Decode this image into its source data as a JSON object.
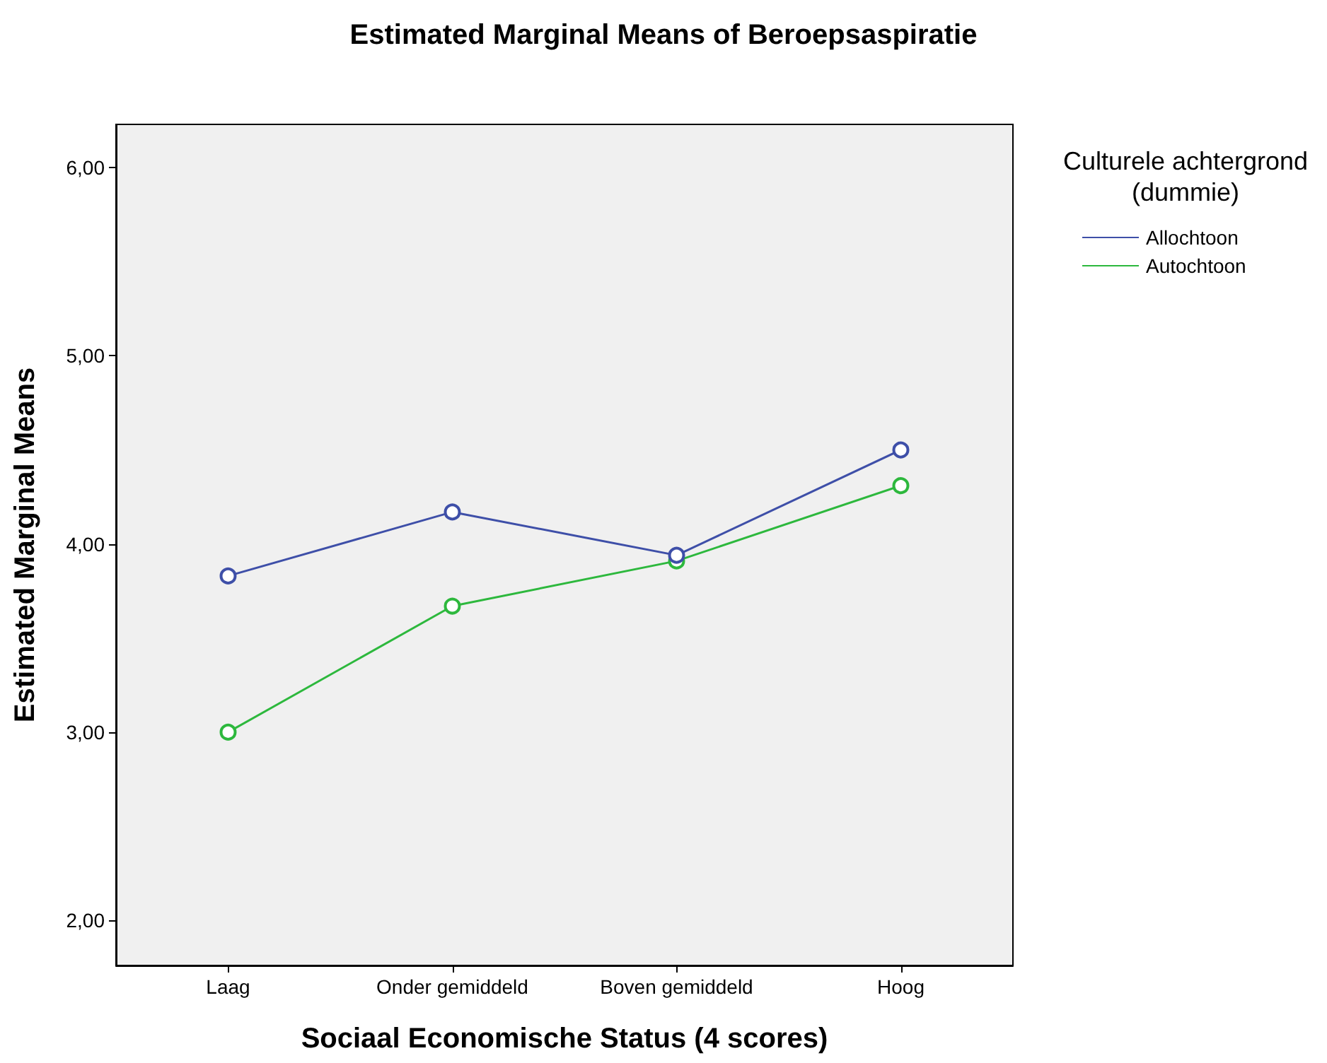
{
  "chart_data": {
    "type": "line",
    "title": "Estimated Marginal Means of Beroepsaspiratie",
    "xlabel": "Sociaal Economische Status (4 scores)",
    "ylabel": "Estimated Marginal Means",
    "legend_title": "Culturele achtergrond\n(dummie)",
    "categories": [
      "Laag",
      "Onder gemiddeld",
      "Boven gemiddeld",
      "Hoog"
    ],
    "series": [
      {
        "name": "Allochtoon",
        "color": "#3e4fa8",
        "values": [
          3.83,
          4.17,
          3.94,
          4.5
        ]
      },
      {
        "name": "Autochtoon",
        "color": "#2db83d",
        "values": [
          3.0,
          3.67,
          3.91,
          4.31
        ]
      }
    ],
    "ylim": [
      1.76,
      6.23
    ],
    "yticks": [
      {
        "value": 2,
        "label": "2,00"
      },
      {
        "value": 3,
        "label": "3,00"
      },
      {
        "value": 4,
        "label": "4,00"
      },
      {
        "value": 5,
        "label": "5,00"
      },
      {
        "value": 6,
        "label": "6,00"
      }
    ],
    "grid": false,
    "legend": "top right",
    "marker": "circle",
    "line_style": "solid"
  }
}
